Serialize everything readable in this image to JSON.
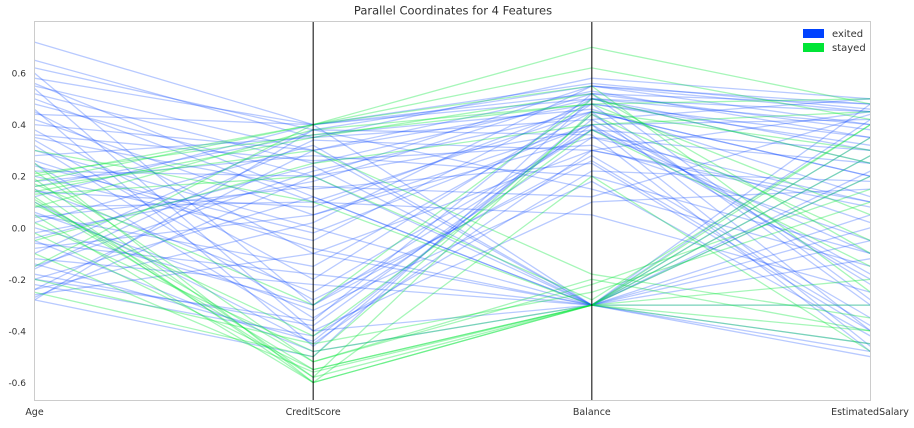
{
  "chart_data": {
    "type": "parallel_coordinates",
    "title": "Parallel Coordinates for 4 Features",
    "features": [
      "Age",
      "CreditScore",
      "Balance",
      "EstimatedSalary"
    ],
    "ylim": [
      -0.67,
      0.8
    ],
    "yticks": [
      -0.6,
      -0.4,
      -0.2,
      0.0,
      0.2,
      0.4,
      0.6
    ],
    "ytick_labels": [
      "-0.6",
      "-0.4",
      "-0.2",
      "0.0",
      "0.2",
      "0.4",
      "0.6"
    ],
    "grid": false,
    "legend": {
      "placement": "top-right",
      "entries": [
        {
          "label": "exited",
          "color": "#0042ff"
        },
        {
          "label": "stayed",
          "color": "#00e536"
        }
      ]
    },
    "axis_line_color": "#000000",
    "series": [
      {
        "name": "exited",
        "color": "#0042ff",
        "opacity": 0.28,
        "lines": [
          [
            0.72,
            0.4,
            0.5,
            0.45
          ],
          [
            0.65,
            0.35,
            0.58,
            0.5
          ],
          [
            0.62,
            0.38,
            0.55,
            0.4
          ],
          [
            0.58,
            0.4,
            0.52,
            0.48
          ],
          [
            0.55,
            0.3,
            0.53,
            0.35
          ],
          [
            0.52,
            0.25,
            0.5,
            0.3
          ],
          [
            0.5,
            0.1,
            0.45,
            0.2
          ],
          [
            0.48,
            0.2,
            0.55,
            0.45
          ],
          [
            0.45,
            -0.1,
            0.3,
            0.1
          ],
          [
            0.42,
            0.05,
            0.4,
            -0.2
          ],
          [
            0.4,
            0.3,
            -0.3,
            0.0
          ],
          [
            0.38,
            -0.2,
            0.48,
            0.35
          ],
          [
            0.35,
            0.15,
            0.25,
            -0.4
          ],
          [
            0.32,
            -0.35,
            0.35,
            0.25
          ],
          [
            0.3,
            0.0,
            -0.3,
            -0.3
          ],
          [
            0.28,
            0.35,
            0.42,
            0.5
          ],
          [
            0.25,
            -0.4,
            0.1,
            0.15
          ],
          [
            0.22,
            0.2,
            -0.3,
            -0.45
          ],
          [
            0.2,
            -0.05,
            0.5,
            0.4
          ],
          [
            0.18,
            0.28,
            0.2,
            -0.1
          ],
          [
            0.15,
            -0.25,
            0.38,
            0.3
          ],
          [
            0.12,
            0.4,
            -0.3,
            -0.5
          ],
          [
            0.1,
            -0.45,
            0.3,
            0.45
          ],
          [
            0.08,
            0.1,
            0.05,
            -0.25
          ],
          [
            0.05,
            -0.15,
            0.45,
            0.2
          ],
          [
            0.02,
            0.32,
            -0.3,
            0.05
          ],
          [
            0.0,
            -0.3,
            0.28,
            -0.35
          ],
          [
            -0.02,
            0.18,
            0.52,
            0.38
          ],
          [
            -0.05,
            -0.48,
            -0.3,
            -0.48
          ],
          [
            -0.08,
            0.05,
            0.35,
            0.1
          ],
          [
            -0.1,
            0.38,
            0.15,
            -0.15
          ],
          [
            -0.12,
            -0.22,
            -0.3,
            0.28
          ],
          [
            -0.15,
            0.22,
            0.45,
            -0.4
          ],
          [
            -0.18,
            -0.38,
            0.4,
            0.42
          ],
          [
            -0.2,
            0.12,
            -0.3,
            -0.05
          ],
          [
            -0.22,
            -0.42,
            0.22,
            0.18
          ],
          [
            -0.24,
            0.3,
            0.48,
            -0.3
          ],
          [
            -0.26,
            -0.1,
            -0.3,
            0.35
          ],
          [
            -0.28,
            0.38,
            0.36,
            -0.48
          ],
          [
            -0.28,
            -0.5,
            0.5,
            0.25
          ],
          [
            0.6,
            -0.3,
            0.38,
            -0.1
          ],
          [
            0.56,
            0.12,
            -0.3,
            0.48
          ],
          [
            0.46,
            -0.46,
            0.44,
            -0.22
          ],
          [
            0.36,
            0.26,
            0.32,
            -0.05
          ],
          [
            0.26,
            -0.08,
            -0.3,
            0.42
          ],
          [
            0.16,
            0.36,
            0.46,
            0.12
          ],
          [
            0.06,
            -0.32,
            0.18,
            -0.42
          ],
          [
            -0.04,
            0.24,
            -0.3,
            0.22
          ],
          [
            -0.14,
            -0.44,
            0.42,
            -0.18
          ],
          [
            -0.24,
            0.02,
            0.55,
            0.48
          ],
          [
            0.44,
            0.4,
            0.56,
            0.46
          ],
          [
            0.34,
            -0.28,
            0.26,
            -0.38
          ],
          [
            0.14,
            0.08,
            0.48,
            0.32
          ],
          [
            -0.06,
            -0.18,
            -0.3,
            -0.12
          ],
          [
            -0.16,
            0.34,
            0.3,
            0.08
          ],
          [
            0.54,
            -0.4,
            -0.3,
            0.2
          ],
          [
            0.24,
            -0.02,
            0.4,
            -0.46
          ],
          [
            0.04,
            0.16,
            0.12,
            0.44
          ],
          [
            -0.2,
            -0.36,
            0.52,
            -0.28
          ],
          [
            -0.27,
            0.2,
            0.38,
            0.02
          ]
        ]
      },
      {
        "name": "stayed",
        "color": "#00e536",
        "opacity": 0.35,
        "lines": [
          [
            0.2,
            0.4,
            0.7,
            0.48
          ],
          [
            0.18,
            0.4,
            0.62,
            0.42
          ],
          [
            0.15,
            -0.6,
            -0.3,
            -0.45
          ],
          [
            0.12,
            -0.58,
            0.45,
            0.3
          ],
          [
            0.1,
            -0.55,
            -0.3,
            -0.2
          ],
          [
            0.08,
            0.38,
            0.48,
            0.05
          ],
          [
            0.05,
            -0.6,
            -0.3,
            0.4
          ],
          [
            0.16,
            0.3,
            -0.18,
            -0.35
          ],
          [
            0.22,
            -0.52,
            -0.22,
            0.15
          ],
          [
            0.14,
            0.35,
            0.52,
            -0.1
          ],
          [
            0.02,
            -0.48,
            -0.3,
            -0.4
          ],
          [
            -0.05,
            0.25,
            0.4,
            0.45
          ],
          [
            -0.1,
            -0.56,
            -0.3,
            0.2
          ],
          [
            -0.15,
            0.4,
            0.55,
            -0.25
          ],
          [
            -0.2,
            -0.45,
            -0.25,
            0.1
          ],
          [
            0.25,
            -0.6,
            0.2,
            -0.48
          ],
          [
            0.3,
            0.1,
            -0.3,
            0.35
          ],
          [
            -0.25,
            -0.5,
            0.44,
            -0.05
          ],
          [
            0.17,
            -0.3,
            0.5,
            0.25
          ],
          [
            0.19,
            -0.58,
            -0.3,
            -0.3
          ],
          [
            0.13,
            0.2,
            -0.28,
            0.4
          ],
          [
            0.09,
            -0.42,
            0.38,
            -0.15
          ],
          [
            -0.02,
            -0.55,
            -0.3,
            0.28
          ],
          [
            0.21,
            0.36,
            0.48,
            0.5
          ],
          [
            0.11,
            -0.52,
            -0.2,
            -0.4
          ]
        ]
      }
    ]
  }
}
